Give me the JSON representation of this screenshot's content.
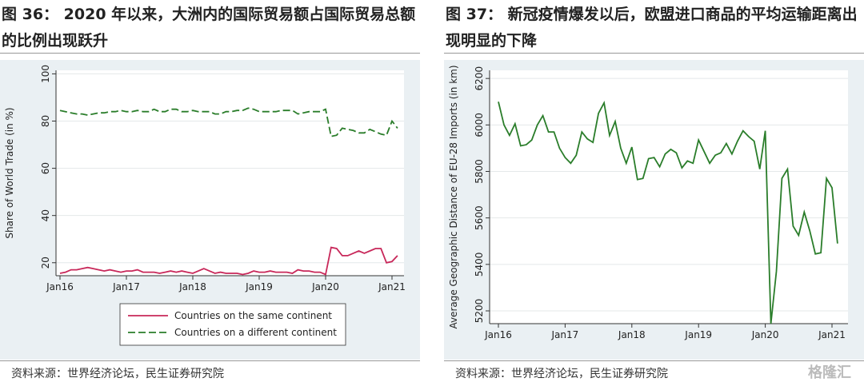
{
  "chart_data": [
    {
      "type": "line",
      "title": "图 36： 2020 年以来，大洲内的国际贸易额占国际贸易总额的比例出现跃升",
      "source": "资料来源：世界经济论坛，民生证券研究院",
      "y_label": "Share of World Trade (in %)",
      "categories": [
        "Jan16",
        null,
        null,
        null,
        null,
        null,
        null,
        null,
        null,
        null,
        null,
        null,
        "Jan17",
        null,
        null,
        null,
        null,
        null,
        null,
        null,
        null,
        null,
        null,
        null,
        "Jan18",
        null,
        null,
        null,
        null,
        null,
        null,
        null,
        null,
        null,
        null,
        null,
        "Jan19",
        null,
        null,
        null,
        null,
        null,
        null,
        null,
        null,
        null,
        null,
        null,
        "Jan20",
        null,
        null,
        null,
        null,
        null,
        null,
        null,
        null,
        null,
        null,
        null,
        "Jan21",
        null
      ],
      "ylim": [
        14.5,
        101.5
      ],
      "yticks": [
        20,
        40,
        60,
        80,
        100
      ],
      "grid": true,
      "legend": "bottom",
      "series": [
        {
          "name": "Countries on the same continent",
          "color": "#c8285a",
          "line_style": "solid",
          "values": [
            15.5,
            16,
            17,
            17,
            17.5,
            18,
            17.5,
            17,
            16.5,
            17,
            16.5,
            16,
            16.5,
            16.5,
            17,
            16,
            16,
            16,
            15.5,
            16,
            16.5,
            16,
            16.5,
            16,
            15.5,
            16.5,
            17.5,
            16.5,
            15.5,
            16,
            15.5,
            15.5,
            15.5,
            15,
            15.5,
            16.5,
            16,
            16,
            16.5,
            16,
            16,
            16,
            15.5,
            17,
            16.5,
            16.5,
            16,
            16,
            15,
            26.5,
            26,
            23,
            23,
            24,
            25,
            24,
            25,
            26,
            26,
            20,
            20.5,
            23
          ]
        },
        {
          "name": "Countries on a different continent",
          "color": "#2a7d2a",
          "line_style": "dashed",
          "values": [
            84.5,
            84,
            83.5,
            83,
            83,
            82.5,
            83,
            83.5,
            83.5,
            84,
            84,
            84.5,
            84,
            84,
            84.5,
            84,
            84,
            85,
            84,
            84,
            85,
            85,
            84,
            84,
            84.5,
            84,
            84,
            84,
            83,
            83,
            84,
            84,
            84.5,
            84.5,
            85.5,
            85,
            84,
            84,
            84,
            84,
            84.5,
            84.5,
            84.5,
            83,
            83.5,
            84,
            84,
            84,
            85,
            73.5,
            74,
            77,
            76.5,
            76,
            75,
            75,
            76.5,
            75.5,
            74.5,
            74,
            80,
            77
          ]
        }
      ]
    },
    {
      "type": "line",
      "title": "图 37： 新冠疫情爆发以后，欧盟进口商品的平均运输距离出现明显的下降",
      "source": "资料来源：世界经济论坛，民生证券研究院",
      "watermark": "格隆汇",
      "y_label": "Average Geographic Distance of EU-28 Imports (in km)",
      "categories": [
        "Jan16",
        null,
        null,
        null,
        null,
        null,
        null,
        null,
        null,
        null,
        null,
        null,
        "Jan17",
        null,
        null,
        null,
        null,
        null,
        null,
        null,
        null,
        null,
        null,
        null,
        "Jan18",
        null,
        null,
        null,
        null,
        null,
        null,
        null,
        null,
        null,
        null,
        null,
        "Jan19",
        null,
        null,
        null,
        null,
        null,
        null,
        null,
        null,
        null,
        null,
        null,
        "Jan20",
        null,
        null,
        null,
        null,
        null,
        null,
        null,
        null,
        null,
        null,
        null,
        "Jan21",
        null
      ],
      "ylim": [
        5145,
        6235
      ],
      "yticks": [
        5200,
        5400,
        5600,
        5800,
        6000,
        6200
      ],
      "grid": true,
      "series": [
        {
          "name": "Average Geographic Distance",
          "show_legend": false,
          "color": "#2a7d2a",
          "line_style": "solid",
          "values": [
            6100,
            6000,
            5955,
            6005,
            5910,
            5915,
            5935,
            6000,
            6040,
            5970,
            5970,
            5900,
            5860,
            5835,
            5870,
            5970,
            5940,
            5925,
            6050,
            6095,
            5955,
            6015,
            5900,
            5835,
            5905,
            5765,
            5770,
            5855,
            5860,
            5820,
            5875,
            5895,
            5880,
            5815,
            5845,
            5835,
            5935,
            5885,
            5835,
            5870,
            5880,
            5920,
            5875,
            5930,
            5975,
            5950,
            5930,
            5810,
            5975,
            5145,
            5370,
            5770,
            5810,
            5565,
            5525,
            5625,
            5545,
            5445,
            5450,
            5770,
            5730,
            5490
          ]
        }
      ]
    }
  ]
}
